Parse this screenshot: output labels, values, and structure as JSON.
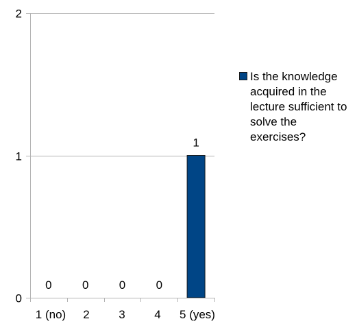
{
  "chart_data": {
    "type": "bar",
    "categories": [
      "1 (no)",
      "2",
      "3",
      "4",
      "5 (yes)"
    ],
    "series": [
      {
        "name": "Is the knowledge acquired in the lecture sufficient to solve the exercises?",
        "values": [
          0,
          0,
          0,
          0,
          1
        ],
        "color": "#004586"
      }
    ],
    "data_labels": [
      "0",
      "0",
      "0",
      "0",
      "1"
    ],
    "ylim": [
      0,
      2
    ],
    "yticks": [
      0,
      1,
      2
    ],
    "grid": true,
    "legend_position": "right",
    "title": "",
    "xlabel": "",
    "ylabel": ""
  }
}
